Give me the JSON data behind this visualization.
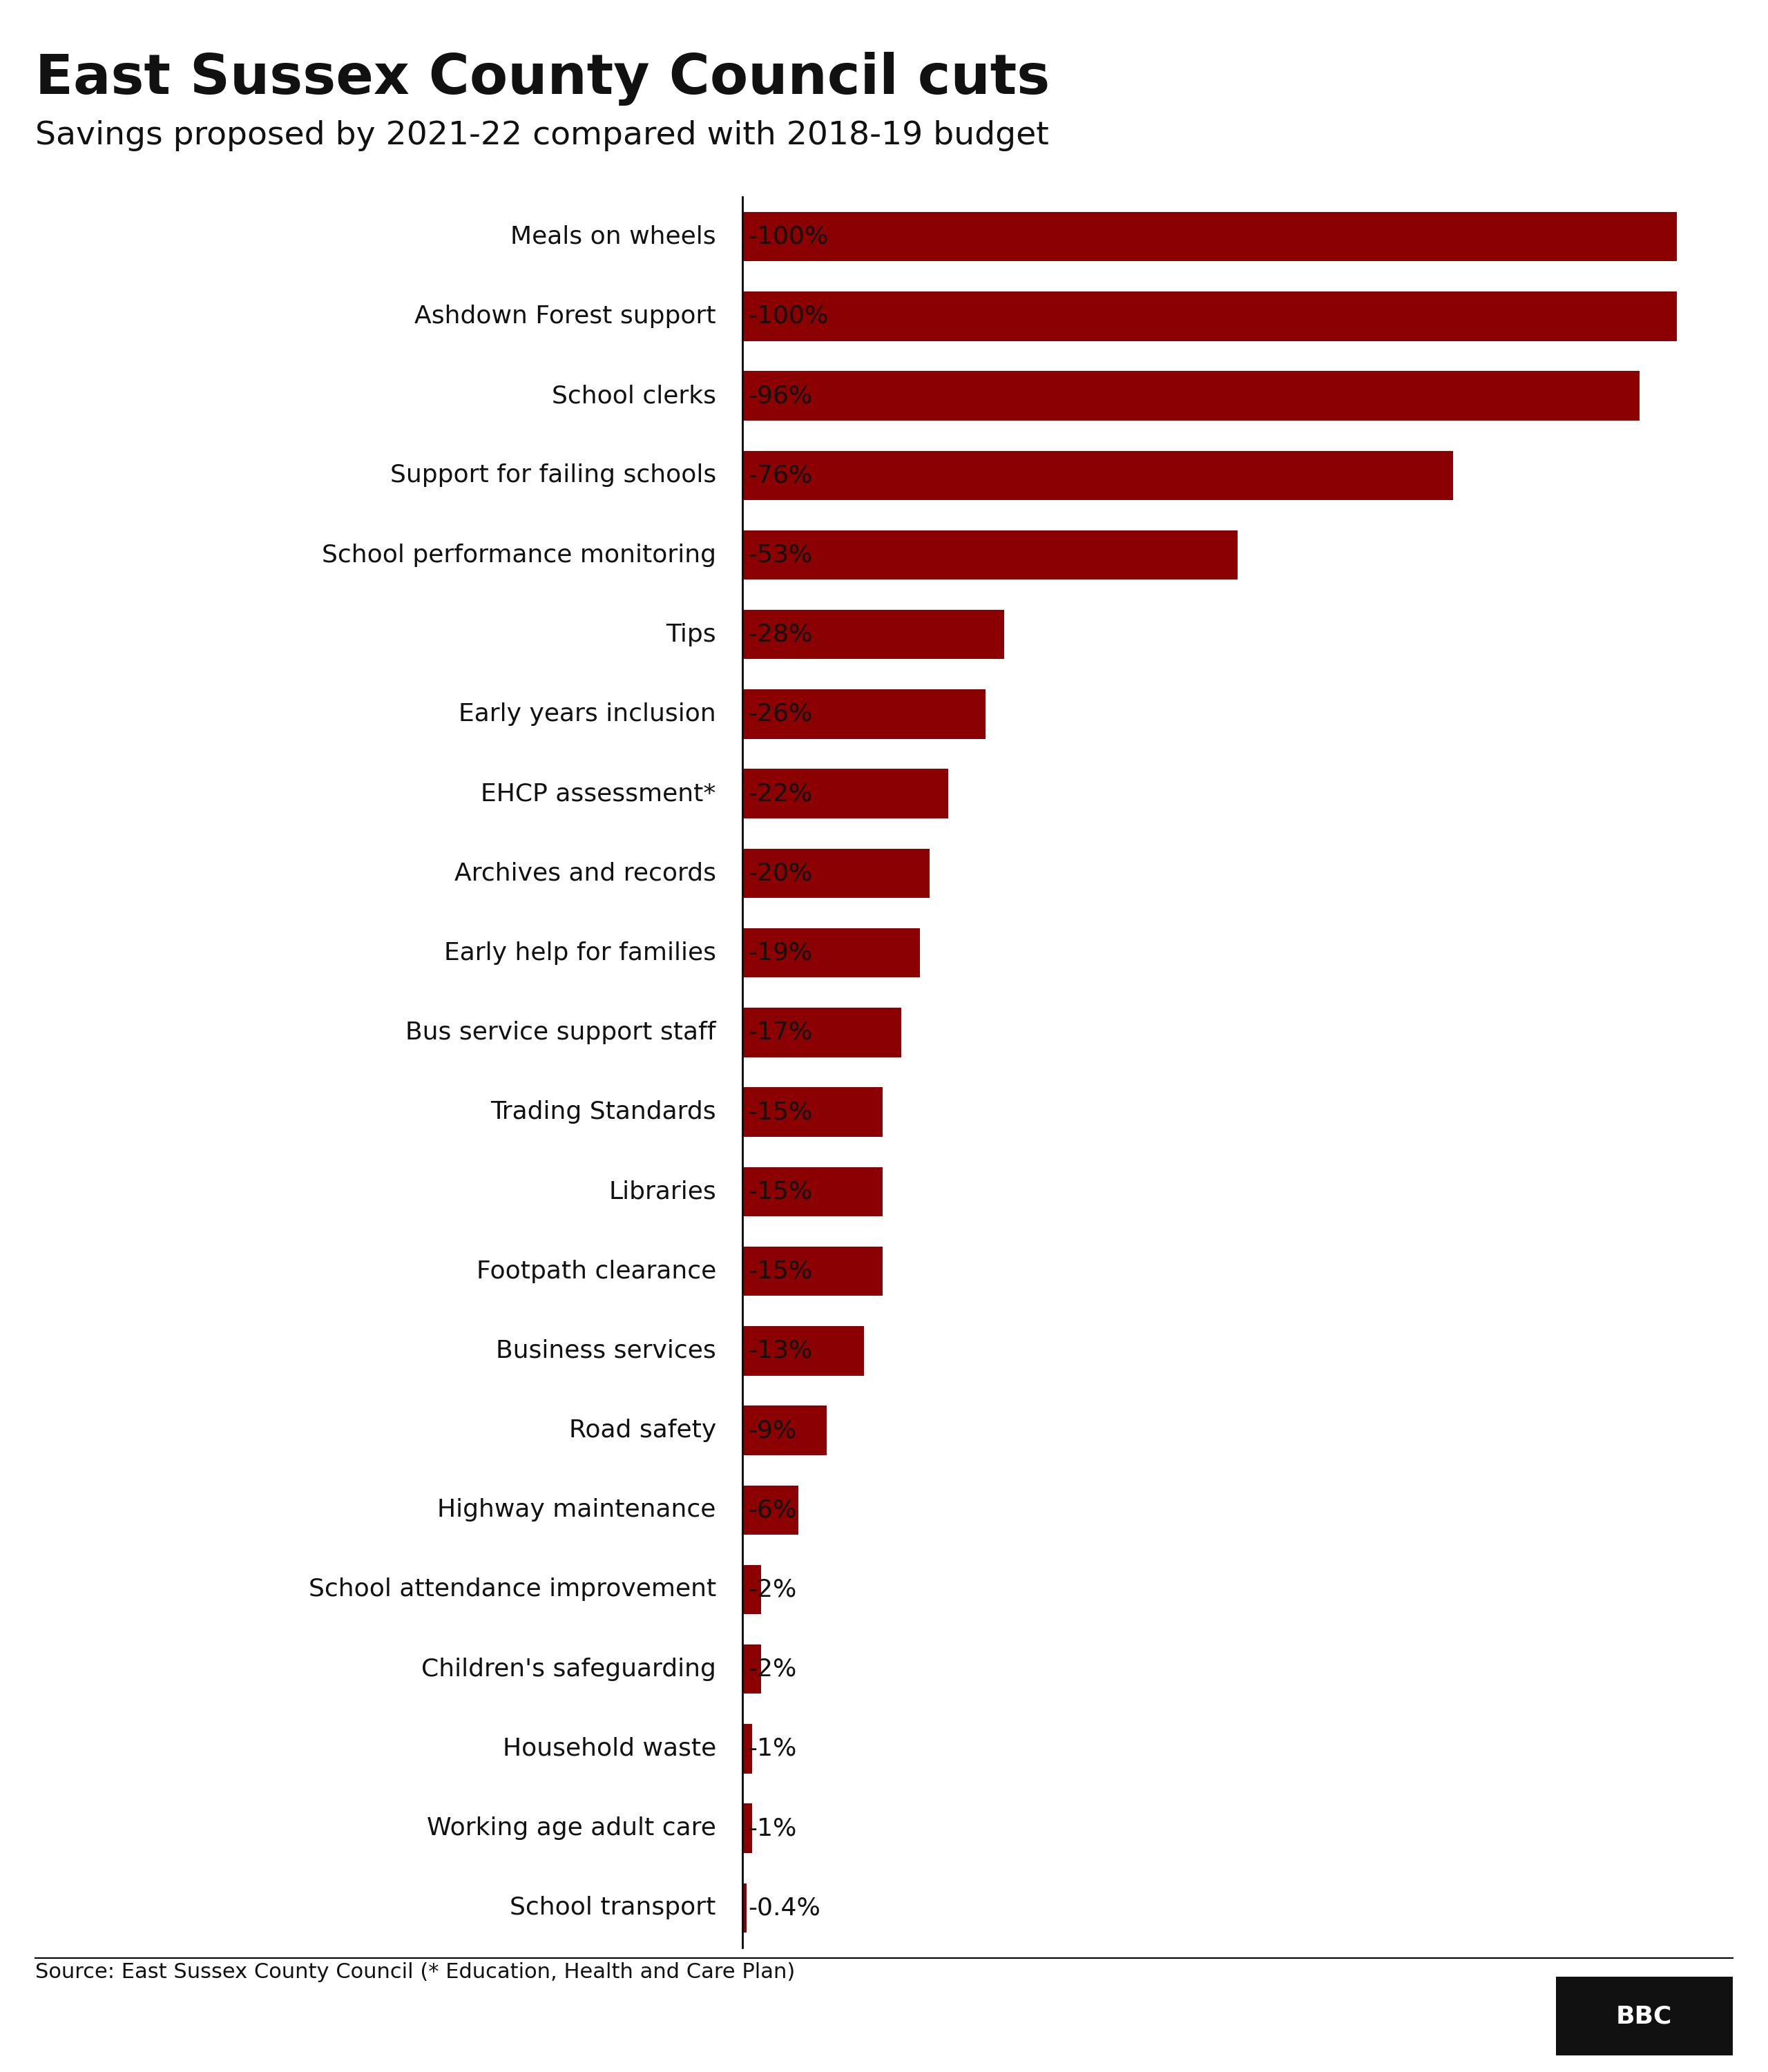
{
  "title": "East Sussex County Council cuts",
  "subtitle": "Savings proposed by 2021-22 compared with 2018-19 budget",
  "source": "Source: East Sussex County Council (* Education, Health and Care Plan)",
  "bar_color": "#8B0000",
  "background_color": "#ffffff",
  "categories": [
    "Meals on wheels",
    "Ashdown Forest support",
    "School clerks",
    "Support for failing schools",
    "School performance monitoring",
    "Tips",
    "Early years inclusion",
    "EHCP assessment*",
    "Archives and records",
    "Early help for families",
    "Bus service support staff",
    "Trading Standards",
    "Libraries",
    "Footpath clearance",
    "Business services",
    "Road safety",
    "Highway maintenance",
    "School attendance improvement",
    "Children's safeguarding",
    "Household waste",
    "Working age adult care",
    "School transport"
  ],
  "values": [
    100,
    100,
    96,
    76,
    53,
    28,
    26,
    22,
    20,
    19,
    17,
    15,
    15,
    15,
    13,
    9,
    6,
    2,
    2,
    1,
    1,
    0.4
  ],
  "labels": [
    "-100%",
    "-100%",
    "-96%",
    "-76%",
    "-53%",
    "-28%",
    "-26%",
    "-22%",
    "-20%",
    "-19%",
    "-17%",
    "-15%",
    "-15%",
    "-15%",
    "-13%",
    "-9%",
    "-6%",
    "-2%",
    "-2%",
    "-1%",
    "-1%",
    "-0.4%"
  ],
  "title_fontsize": 58,
  "subtitle_fontsize": 34,
  "label_fontsize": 26,
  "pct_fontsize": 26,
  "source_fontsize": 22
}
